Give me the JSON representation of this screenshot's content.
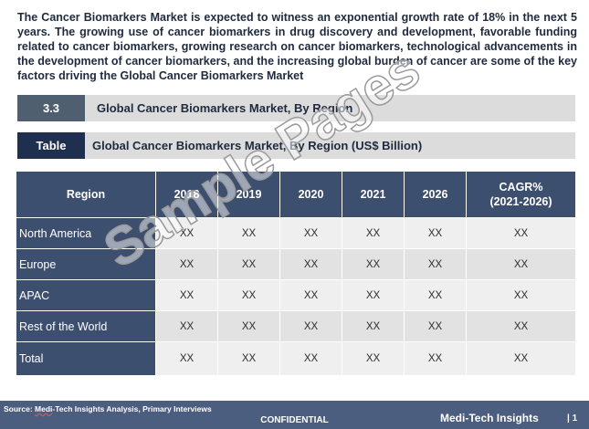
{
  "intro": "The Cancer Biomarkers Market is expected to witness an exponential growth rate of 18% in the next 5 years. The growing use of cancer biomarkers in drug discovery and development, favorable funding related to cancer biomarkers, growing research on cancer biomarkers, technological advancements in the development of cancer biomarkers, and the increasing global burden of cancer are some of the key factors driving the Global Cancer Biomarkers Market",
  "section": {
    "number": "3.3",
    "title": "Global Cancer Biomarkers Market, By Region"
  },
  "table_bar": {
    "tag": "Table",
    "title": "Global Cancer Biomarkers Market, By Region (US$ Billion)"
  },
  "table": {
    "headers": [
      "Region",
      "2018",
      "2019",
      "2020",
      "2021",
      "2026",
      "CAGR%\n(2021-2026)"
    ],
    "rows": [
      [
        "North America",
        "XX",
        "XX",
        "XX",
        "XX",
        "XX",
        "XX"
      ],
      [
        "Europe",
        "XX",
        "XX",
        "XX",
        "XX",
        "XX",
        "XX"
      ],
      [
        "APAC",
        "XX",
        "XX",
        "XX",
        "XX",
        "XX",
        "XX"
      ],
      [
        "Rest of the World",
        "XX",
        "XX",
        "XX",
        "XX",
        "XX",
        "XX"
      ],
      [
        "Total",
        "XX",
        "XX",
        "XX",
        "XX",
        "XX",
        "XX"
      ]
    ]
  },
  "watermark": "Sample Pages",
  "footer": {
    "source_prefix": "Source: ",
    "source_underlined": "Medi",
    "source_rest": "-Tech Insights Analysis, Primary Interviews",
    "confidential": "CONFIDENTIAL",
    "brand": "Medi-Tech Insights",
    "page": "| 1"
  }
}
